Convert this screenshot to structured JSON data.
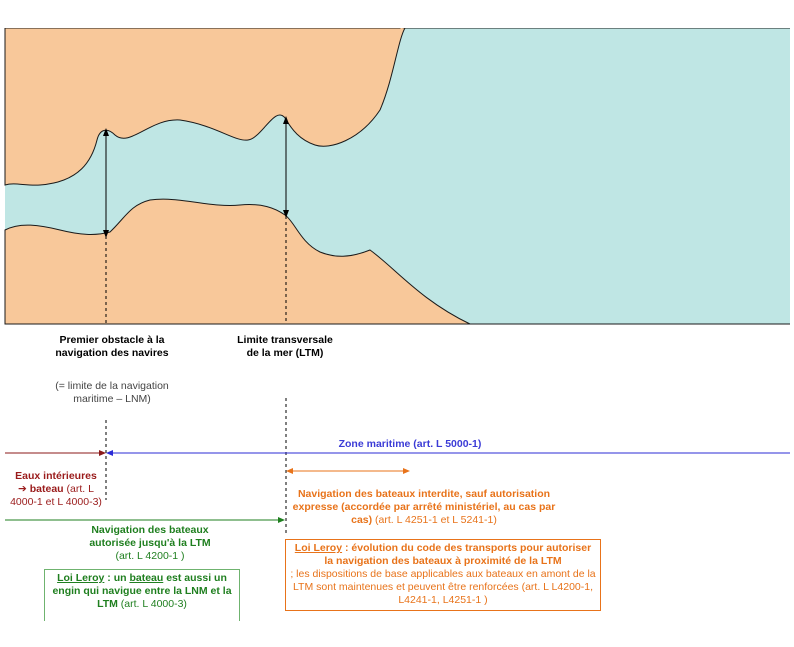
{
  "colors": {
    "land": "#f8c89a",
    "water": "#bfe6e4",
    "coast": "#1a1a1a",
    "inland_line": "#8b1a1a",
    "maritime_line": "#2b2bd6",
    "green": "#1f7f1f",
    "orange": "#e8731a"
  },
  "labels": {
    "obstacle_title": "Premier obstacle à la navigation des navires",
    "obstacle_note": "(= limite de la navigation maritime – LNM)",
    "ltm_title": "Limite transversale de la mer (LTM)",
    "zone_maritime": "Zone maritime (art. L 5000-1)",
    "eaux_title": "Eaux intérieures",
    "eaux_bateau": "➔ bateau",
    "eaux_ref_a": "(art. L",
    "eaux_ref_b": "4000-1 et L 4000-3)",
    "nav_autorisee_line1": "Navigation des bateaux",
    "nav_autorisee_line2": "autorisée jusqu'à la LTM",
    "nav_autorisee_ref": "(art. L 4200-1 )",
    "loi_leroy_green_a": "Loi Leroy",
    "loi_leroy_green_b": " : un ",
    "loi_leroy_green_c": "bateau",
    "loi_leroy_green_d": " est aussi un engin qui navigue entre la LNM et la LTM",
    "loi_leroy_green_ref": " (art. L 4000-3)",
    "nav_interdite": "Navigation des bateaux interdite, sauf autorisation expresse (accordée par arrêté ministériel, au cas par cas)",
    "nav_interdite_ref": " (art. L 4251-1 et  L 5241-1)",
    "loi_leroy_orange_a": "Loi Leroy",
    "loi_leroy_orange_b": " : évolution du code des transports pour autoriser la navigation des bateaux à proximité de la LTM",
    "loi_leroy_orange_c": "; les dispositions de base applicables aux bateaux en amont de la LTM sont maintenues et peuvent être renforcées  (art. L L4200-1, L4241-1, L4251-1     )"
  }
}
